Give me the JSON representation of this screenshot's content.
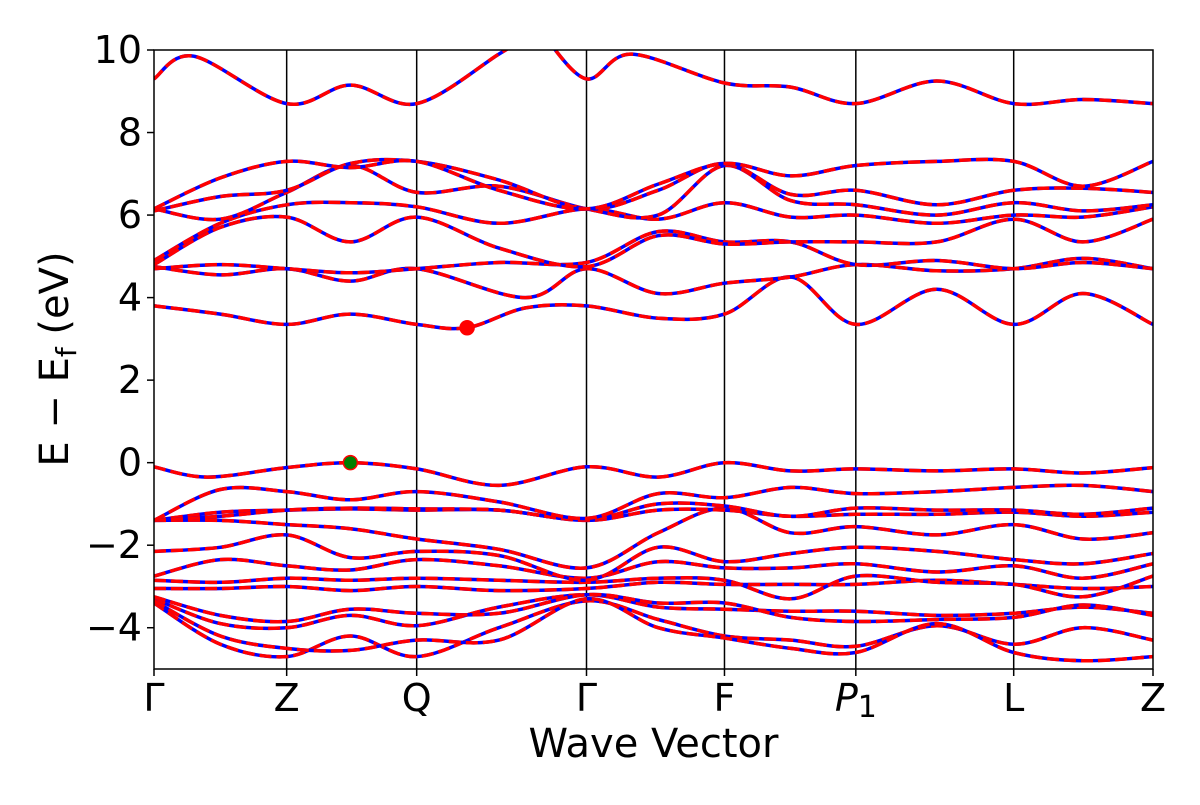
{
  "chart_data": {
    "type": "line",
    "title": "",
    "xlabel": "Wave Vector",
    "ylabel": "E − E_f (eV)",
    "ylabel_parts": {
      "main": "E − E",
      "sub": "f",
      "unit": " (eV)"
    },
    "ylim": [
      -5,
      10
    ],
    "yticks": [
      {
        "value": 10,
        "label": "10"
      },
      {
        "value": 8,
        "label": "8"
      },
      {
        "value": 6,
        "label": "6"
      },
      {
        "value": 4,
        "label": "4"
      },
      {
        "value": 2,
        "label": "2"
      },
      {
        "value": 0,
        "label": "0"
      },
      {
        "value": -2,
        "label": "−2"
      },
      {
        "value": -4,
        "label": "−4"
      }
    ],
    "xlim": [
      0,
      7.53
    ],
    "kpoints": [
      {
        "label": "Γ",
        "x": 0.0
      },
      {
        "label": "Z",
        "x": 1.0
      },
      {
        "label": "Q",
        "x": 1.98
      },
      {
        "label": "Γ",
        "x": 3.26
      },
      {
        "label": "F",
        "x": 4.3
      },
      {
        "label": "P",
        "sub": "1",
        "x": 5.29
      },
      {
        "label": "L",
        "x": 6.48
      },
      {
        "label": "Z",
        "x": 7.53
      }
    ],
    "series_styles": [
      {
        "role": "solid",
        "color": "#0000ff"
      },
      {
        "role": "dashed",
        "color": "#ff0000"
      }
    ],
    "markers": [
      {
        "role": "vbm",
        "x": 1.48,
        "y": 0.0,
        "color": "#007f00"
      },
      {
        "role": "cbm",
        "x": 2.36,
        "y": 3.27,
        "color": "#ff0000"
      }
    ],
    "bands": [
      [
        [
          0,
          -3.3
        ],
        [
          0.5,
          -3.9
        ],
        [
          1.0,
          -4.0
        ],
        [
          1.48,
          -3.7
        ],
        [
          1.98,
          -3.95
        ],
        [
          2.6,
          -3.5
        ],
        [
          3.26,
          -3.2
        ],
        [
          3.8,
          -3.5
        ],
        [
          4.3,
          -3.55
        ],
        [
          4.8,
          -3.6
        ],
        [
          5.29,
          -3.6
        ],
        [
          5.9,
          -3.7
        ],
        [
          6.48,
          -3.65
        ],
        [
          7.0,
          -3.5
        ],
        [
          7.53,
          -3.65
        ]
      ],
      [
        [
          0,
          -3.4
        ],
        [
          0.5,
          -4.4
        ],
        [
          1.0,
          -4.7
        ],
        [
          1.48,
          -4.2
        ],
        [
          1.98,
          -4.7
        ],
        [
          2.6,
          -4.0
        ],
        [
          3.26,
          -3.35
        ],
        [
          3.8,
          -3.8
        ],
        [
          4.3,
          -4.2
        ],
        [
          4.8,
          -4.3
        ],
        [
          5.29,
          -4.45
        ],
        [
          5.9,
          -3.95
        ],
        [
          6.48,
          -4.4
        ],
        [
          7.0,
          -4.0
        ],
        [
          7.53,
          -4.3
        ]
      ],
      [
        [
          0,
          -3.35
        ],
        [
          0.5,
          -4.2
        ],
        [
          1.0,
          -4.5
        ],
        [
          1.48,
          -4.55
        ],
        [
          1.98,
          -4.3
        ],
        [
          2.6,
          -4.3
        ],
        [
          3.26,
          -3.3
        ],
        [
          3.8,
          -4.0
        ],
        [
          4.3,
          -4.25
        ],
        [
          4.8,
          -4.5
        ],
        [
          5.29,
          -4.6
        ],
        [
          5.9,
          -3.9
        ],
        [
          6.48,
          -4.6
        ],
        [
          7.0,
          -4.8
        ],
        [
          7.53,
          -4.7
        ]
      ],
      [
        [
          0,
          -3.25
        ],
        [
          0.5,
          -3.7
        ],
        [
          1.0,
          -3.85
        ],
        [
          1.48,
          -3.55
        ],
        [
          1.98,
          -3.65
        ],
        [
          2.6,
          -3.65
        ],
        [
          3.26,
          -3.2
        ],
        [
          3.8,
          -3.4
        ],
        [
          4.3,
          -3.4
        ],
        [
          4.8,
          -3.75
        ],
        [
          5.29,
          -3.85
        ],
        [
          5.9,
          -3.8
        ],
        [
          6.48,
          -3.75
        ],
        [
          7.0,
          -3.45
        ],
        [
          7.53,
          -3.7
        ]
      ],
      [
        [
          0,
          -3.05
        ],
        [
          0.5,
          -3.05
        ],
        [
          1.0,
          -3.0
        ],
        [
          1.48,
          -3.1
        ],
        [
          1.98,
          -3.0
        ],
        [
          2.6,
          -3.1
        ],
        [
          3.26,
          -3.05
        ],
        [
          3.8,
          -2.9
        ],
        [
          4.3,
          -2.95
        ],
        [
          4.8,
          -2.95
        ],
        [
          5.29,
          -2.95
        ],
        [
          5.9,
          -2.85
        ],
        [
          6.48,
          -2.95
        ],
        [
          7.0,
          -3.05
        ],
        [
          7.53,
          -3.0
        ]
      ],
      [
        [
          0,
          -2.85
        ],
        [
          0.5,
          -2.9
        ],
        [
          1.0,
          -2.8
        ],
        [
          1.48,
          -2.85
        ],
        [
          1.98,
          -2.8
        ],
        [
          2.6,
          -2.85
        ],
        [
          3.26,
          -2.9
        ],
        [
          3.8,
          -2.8
        ],
        [
          4.3,
          -2.85
        ],
        [
          4.8,
          -3.3
        ],
        [
          5.29,
          -2.75
        ],
        [
          5.9,
          -2.9
        ],
        [
          6.48,
          -2.95
        ],
        [
          7.0,
          -3.25
        ],
        [
          7.53,
          -2.75
        ]
      ],
      [
        [
          0,
          -2.75
        ],
        [
          0.5,
          -2.35
        ],
        [
          1.0,
          -2.5
        ],
        [
          1.48,
          -2.6
        ],
        [
          1.98,
          -2.35
        ],
        [
          2.6,
          -2.5
        ],
        [
          3.26,
          -2.8
        ],
        [
          3.8,
          -2.4
        ],
        [
          4.3,
          -2.55
        ],
        [
          4.8,
          -2.55
        ],
        [
          5.29,
          -2.45
        ],
        [
          5.9,
          -2.65
        ],
        [
          6.48,
          -2.5
        ],
        [
          7.0,
          -2.8
        ],
        [
          7.53,
          -2.45
        ]
      ],
      [
        [
          0,
          -2.15
        ],
        [
          0.5,
          -2.05
        ],
        [
          1.0,
          -1.75
        ],
        [
          1.48,
          -2.3
        ],
        [
          1.98,
          -2.15
        ],
        [
          2.6,
          -2.25
        ],
        [
          3.26,
          -2.85
        ],
        [
          3.8,
          -2.05
        ],
        [
          4.3,
          -2.4
        ],
        [
          4.8,
          -2.2
        ],
        [
          5.29,
          -2.05
        ],
        [
          5.9,
          -2.15
        ],
        [
          6.48,
          -2.35
        ],
        [
          7.0,
          -2.45
        ],
        [
          7.53,
          -2.2
        ]
      ],
      [
        [
          0,
          -1.4
        ],
        [
          0.5,
          -1.4
        ],
        [
          1.0,
          -1.5
        ],
        [
          1.48,
          -1.6
        ],
        [
          1.98,
          -1.85
        ],
        [
          2.6,
          -2.1
        ],
        [
          3.26,
          -2.55
        ],
        [
          3.8,
          -1.7
        ],
        [
          4.3,
          -1.1
        ],
        [
          4.8,
          -1.7
        ],
        [
          5.29,
          -1.55
        ],
        [
          5.9,
          -1.75
        ],
        [
          6.48,
          -1.5
        ],
        [
          7.0,
          -1.85
        ],
        [
          7.53,
          -1.7
        ]
      ],
      [
        [
          0,
          -1.4
        ],
        [
          0.5,
          -1.2
        ],
        [
          1.0,
          -1.15
        ],
        [
          1.48,
          -1.12
        ],
        [
          1.98,
          -1.15
        ],
        [
          2.6,
          -1.15
        ],
        [
          3.26,
          -1.4
        ],
        [
          3.8,
          -1.15
        ],
        [
          4.3,
          -1.15
        ],
        [
          4.8,
          -1.3
        ],
        [
          5.29,
          -1.25
        ],
        [
          5.9,
          -1.25
        ],
        [
          6.48,
          -1.2
        ],
        [
          7.0,
          -1.3
        ],
        [
          7.53,
          -1.2
        ]
      ],
      [
        [
          0,
          -1.4
        ],
        [
          0.5,
          -1.3
        ],
        [
          1.0,
          -1.15
        ],
        [
          1.48,
          -1.1
        ],
        [
          1.98,
          -1.12
        ],
        [
          2.6,
          -1.15
        ],
        [
          3.26,
          -1.38
        ],
        [
          3.8,
          -1.0
        ],
        [
          4.3,
          -1.05
        ],
        [
          4.8,
          -1.3
        ],
        [
          5.29,
          -1.1
        ],
        [
          5.9,
          -1.15
        ],
        [
          6.48,
          -1.15
        ],
        [
          7.0,
          -1.25
        ],
        [
          7.53,
          -1.1
        ]
      ],
      [
        [
          0,
          -1.4
        ],
        [
          0.5,
          -0.65
        ],
        [
          1.0,
          -0.7
        ],
        [
          1.48,
          -0.9
        ],
        [
          1.98,
          -0.7
        ],
        [
          2.6,
          -0.95
        ],
        [
          3.26,
          -1.35
        ],
        [
          3.8,
          -0.75
        ],
        [
          4.3,
          -0.85
        ],
        [
          4.8,
          -0.6
        ],
        [
          5.29,
          -0.75
        ],
        [
          5.9,
          -0.7
        ],
        [
          6.48,
          -0.6
        ],
        [
          7.0,
          -0.55
        ],
        [
          7.53,
          -0.7
        ]
      ],
      [
        [
          0,
          -0.1
        ],
        [
          0.4,
          -0.35
        ],
        [
          1.0,
          -0.12
        ],
        [
          1.48,
          0.0
        ],
        [
          1.98,
          -0.15
        ],
        [
          2.6,
          -0.55
        ],
        [
          3.26,
          -0.1
        ],
        [
          3.8,
          -0.35
        ],
        [
          4.3,
          0.0
        ],
        [
          4.8,
          -0.2
        ],
        [
          5.29,
          -0.15
        ],
        [
          5.9,
          -0.2
        ],
        [
          6.48,
          -0.15
        ],
        [
          7.0,
          -0.25
        ],
        [
          7.53,
          -0.12
        ]
      ],
      [
        [
          0,
          3.8
        ],
        [
          0.5,
          3.6
        ],
        [
          1.0,
          3.35
        ],
        [
          1.48,
          3.6
        ],
        [
          1.98,
          3.35
        ],
        [
          2.36,
          3.27
        ],
        [
          2.8,
          3.75
        ],
        [
          3.26,
          3.8
        ],
        [
          3.8,
          3.5
        ],
        [
          4.3,
          3.6
        ],
        [
          4.8,
          4.5
        ],
        [
          5.29,
          3.35
        ],
        [
          5.9,
          4.2
        ],
        [
          6.48,
          3.35
        ],
        [
          7.0,
          4.1
        ],
        [
          7.53,
          3.35
        ]
      ],
      [
        [
          0,
          4.75
        ],
        [
          0.5,
          4.55
        ],
        [
          1.0,
          4.7
        ],
        [
          1.48,
          4.4
        ],
        [
          1.98,
          4.7
        ],
        [
          2.8,
          4.0
        ],
        [
          3.26,
          4.7
        ],
        [
          3.8,
          4.1
        ],
        [
          4.3,
          4.35
        ],
        [
          4.8,
          4.5
        ],
        [
          5.29,
          4.8
        ],
        [
          5.9,
          4.65
        ],
        [
          6.48,
          4.7
        ],
        [
          7.0,
          4.95
        ],
        [
          7.53,
          4.7
        ]
      ],
      [
        [
          0,
          4.7
        ],
        [
          0.5,
          4.8
        ],
        [
          1.0,
          4.7
        ],
        [
          1.48,
          4.6
        ],
        [
          1.98,
          4.7
        ],
        [
          2.6,
          4.85
        ],
        [
          3.26,
          4.85
        ],
        [
          3.8,
          5.6
        ],
        [
          4.3,
          5.35
        ],
        [
          4.8,
          5.35
        ],
        [
          5.29,
          4.8
        ],
        [
          5.9,
          4.9
        ],
        [
          6.48,
          4.7
        ],
        [
          7.0,
          4.85
        ],
        [
          7.53,
          4.7
        ]
      ],
      [
        [
          0,
          4.8
        ],
        [
          0.5,
          5.7
        ],
        [
          1.0,
          5.95
        ],
        [
          1.48,
          5.35
        ],
        [
          1.98,
          5.95
        ],
        [
          2.6,
          5.2
        ],
        [
          3.26,
          4.75
        ],
        [
          3.8,
          5.5
        ],
        [
          4.3,
          5.3
        ],
        [
          4.8,
          5.35
        ],
        [
          5.29,
          5.35
        ],
        [
          5.9,
          5.35
        ],
        [
          6.48,
          5.9
        ],
        [
          7.0,
          5.35
        ],
        [
          7.53,
          5.9
        ]
      ],
      [
        [
          0,
          4.9
        ],
        [
          0.5,
          5.8
        ],
        [
          1.0,
          6.25
        ],
        [
          1.48,
          6.3
        ],
        [
          1.98,
          6.2
        ],
        [
          2.6,
          5.8
        ],
        [
          3.26,
          6.15
        ],
        [
          3.8,
          5.9
        ],
        [
          4.3,
          6.3
        ],
        [
          4.8,
          5.95
        ],
        [
          5.29,
          6.0
        ],
        [
          5.9,
          5.8
        ],
        [
          6.48,
          6.0
        ],
        [
          7.0,
          5.95
        ],
        [
          7.53,
          6.2
        ]
      ],
      [
        [
          0,
          6.15
        ],
        [
          0.5,
          5.9
        ],
        [
          1.0,
          6.55
        ],
        [
          1.48,
          7.2
        ],
        [
          1.98,
          6.55
        ],
        [
          2.6,
          6.7
        ],
        [
          3.26,
          6.15
        ],
        [
          3.8,
          6.0
        ],
        [
          4.3,
          7.2
        ],
        [
          4.8,
          6.35
        ],
        [
          5.29,
          6.25
        ],
        [
          5.9,
          6.0
        ],
        [
          6.48,
          6.3
        ],
        [
          7.0,
          6.1
        ],
        [
          7.53,
          6.25
        ]
      ],
      [
        [
          0,
          6.1
        ],
        [
          0.5,
          6.45
        ],
        [
          1.0,
          6.6
        ],
        [
          1.48,
          7.25
        ],
        [
          1.98,
          7.3
        ],
        [
          2.6,
          6.85
        ],
        [
          3.26,
          6.15
        ],
        [
          3.8,
          6.6
        ],
        [
          4.3,
          7.25
        ],
        [
          4.8,
          6.5
        ],
        [
          5.29,
          6.6
        ],
        [
          5.9,
          6.25
        ],
        [
          6.48,
          6.6
        ],
        [
          7.0,
          6.65
        ],
        [
          7.53,
          6.55
        ]
      ],
      [
        [
          0,
          6.15
        ],
        [
          0.5,
          6.9
        ],
        [
          1.0,
          7.3
        ],
        [
          1.48,
          7.15
        ],
        [
          1.98,
          7.3
        ],
        [
          2.6,
          6.6
        ],
        [
          3.26,
          6.15
        ],
        [
          3.8,
          6.75
        ],
        [
          4.3,
          7.25
        ],
        [
          4.8,
          6.95
        ],
        [
          5.29,
          7.2
        ],
        [
          5.9,
          7.3
        ],
        [
          6.48,
          7.3
        ],
        [
          7.0,
          6.7
        ],
        [
          7.53,
          7.3
        ]
      ],
      [
        [
          0,
          9.3
        ],
        [
          0.3,
          9.85
        ],
        [
          1.0,
          8.7
        ],
        [
          1.48,
          9.15
        ],
        [
          1.98,
          8.7
        ],
        [
          2.6,
          9.9
        ],
        [
          2.8,
          10.3
        ]
      ],
      [
        [
          2.95,
          10.3
        ],
        [
          3.26,
          9.3
        ],
        [
          3.6,
          9.9
        ],
        [
          4.3,
          9.2
        ],
        [
          4.8,
          9.1
        ],
        [
          5.29,
          8.7
        ],
        [
          5.9,
          9.25
        ],
        [
          6.48,
          8.7
        ],
        [
          7.0,
          8.8
        ],
        [
          7.53,
          8.7
        ]
      ]
    ]
  }
}
